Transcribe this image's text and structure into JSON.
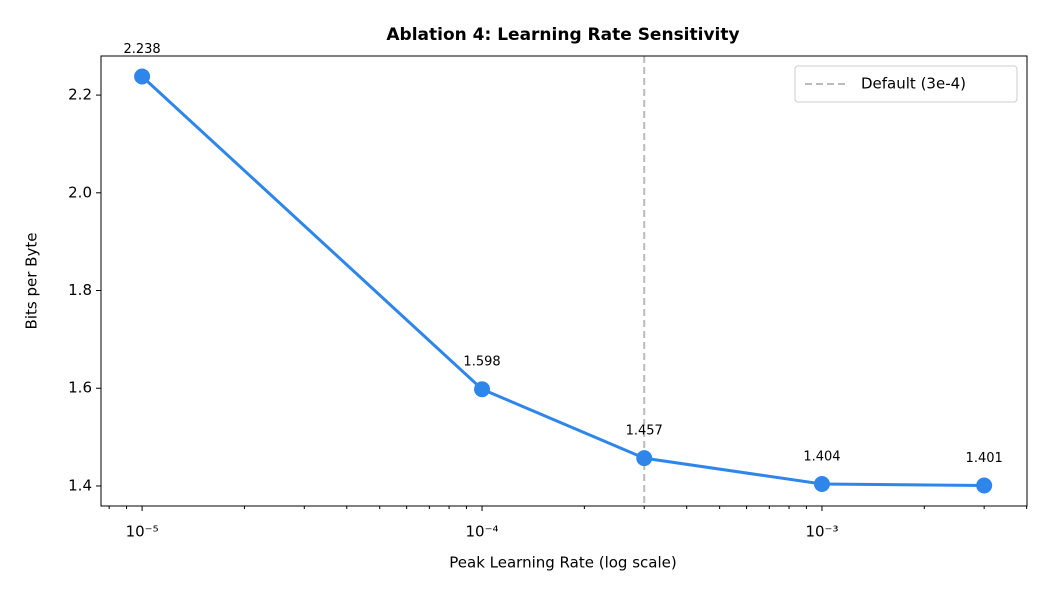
{
  "chart_data": {
    "type": "line",
    "title": "Ablation 4: Learning Rate Sensitivity",
    "x_label": "Peak Learning Rate (log scale)",
    "y_label": "Bits per Byte",
    "x": [
      1e-05,
      0.0001,
      0.0003,
      0.001,
      0.003
    ],
    "series": [
      {
        "name": "Bits per Byte",
        "color": "#2e86ea",
        "values": [
          2.238,
          1.598,
          1.457,
          1.404,
          1.401
        ]
      }
    ],
    "x_scale": "log",
    "xlim": [
      7.57e-06,
      0.00401
    ],
    "xticks": [
      {
        "value": 1e-05,
        "label": "10⁻⁵"
      },
      {
        "value": 0.0001,
        "label": "10⁻⁴"
      },
      {
        "value": 0.001,
        "label": "10⁻³"
      }
    ],
    "ylim": [
      1.359,
      2.28
    ],
    "yticks": [
      1.4,
      1.6,
      1.8,
      {
        "value": 2,
        "label": "2.0"
      },
      2.2
    ],
    "vline": {
      "x": 0.0003,
      "label": "Default (3e-4)",
      "color": "#bbbbbb"
    },
    "legend": "upper right"
  }
}
